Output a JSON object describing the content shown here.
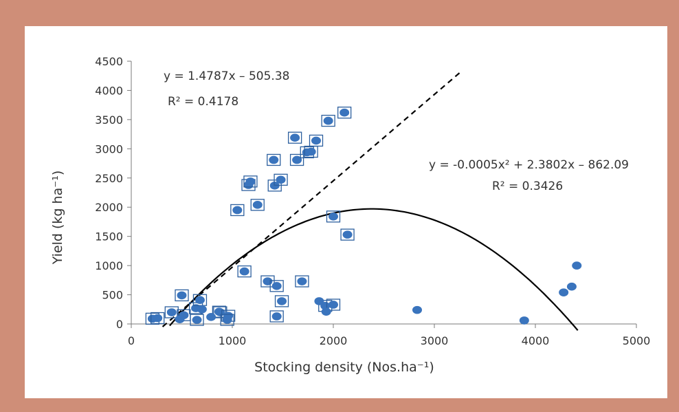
{
  "chart_data": {
    "type": "scatter",
    "xlabel": "Stocking density (Nos.ha⁻¹)",
    "ylabel": "Yield (kg ha⁻¹)",
    "xlim": [
      0,
      5000
    ],
    "ylim": [
      0,
      4500
    ],
    "xticks": [
      0,
      1000,
      2000,
      3000,
      4000,
      5000
    ],
    "yticks": [
      0,
      500,
      1000,
      1500,
      2000,
      2500,
      3000,
      3500,
      4000,
      4500
    ],
    "grid": false,
    "colors": {
      "marker": "#3a74bd",
      "box": "#2c5f9e",
      "line": "#000000"
    },
    "series": [
      {
        "marker": "boxed-circle",
        "points": [
          [
            210,
            90
          ],
          [
            260,
            100
          ],
          [
            500,
            490
          ],
          [
            400,
            200
          ],
          [
            520,
            150
          ],
          [
            640,
            270
          ],
          [
            680,
            410
          ],
          [
            650,
            70
          ],
          [
            870,
            210
          ],
          [
            880,
            200
          ],
          [
            960,
            140
          ],
          [
            950,
            70
          ],
          [
            1050,
            1950
          ],
          [
            1120,
            900
          ],
          [
            1160,
            2380
          ],
          [
            1180,
            2440
          ],
          [
            1250,
            2040
          ],
          [
            1350,
            730
          ],
          [
            1410,
            2810
          ],
          [
            1420,
            2370
          ],
          [
            1440,
            650
          ],
          [
            1440,
            130
          ],
          [
            1480,
            2470
          ],
          [
            1490,
            390
          ],
          [
            1620,
            3190
          ],
          [
            1640,
            2810
          ],
          [
            1690,
            730
          ],
          [
            1740,
            2940
          ],
          [
            1780,
            2950
          ],
          [
            1830,
            3140
          ],
          [
            1920,
            310
          ],
          [
            1950,
            3480
          ],
          [
            2000,
            330
          ],
          [
            2000,
            1840
          ],
          [
            2110,
            3620
          ],
          [
            2140,
            1530
          ]
        ]
      },
      {
        "marker": "circle",
        "points": [
          [
            480,
            80
          ],
          [
            700,
            250
          ],
          [
            790,
            120
          ],
          [
            1860,
            390
          ],
          [
            1930,
            210
          ],
          [
            2830,
            240
          ],
          [
            3890,
            60
          ],
          [
            4280,
            540
          ],
          [
            4360,
            640
          ],
          [
            4410,
            1000
          ]
        ]
      }
    ],
    "trendlines": [
      {
        "style": "dashed",
        "equation": "y = 1.4787x – 505.38",
        "r2": "R² = 0.4178",
        "slope": 1.4787,
        "intercept": -505.38,
        "x_range": [
          310,
          3250
        ]
      },
      {
        "style": "solid",
        "equation": "y = -0.0005x² + 2.3802x – 862.09",
        "r2": "R² = 0.3426",
        "a": -0.0005,
        "b": 2.3802,
        "c": -862.09,
        "x_range": [
          380,
          4420
        ]
      }
    ]
  }
}
